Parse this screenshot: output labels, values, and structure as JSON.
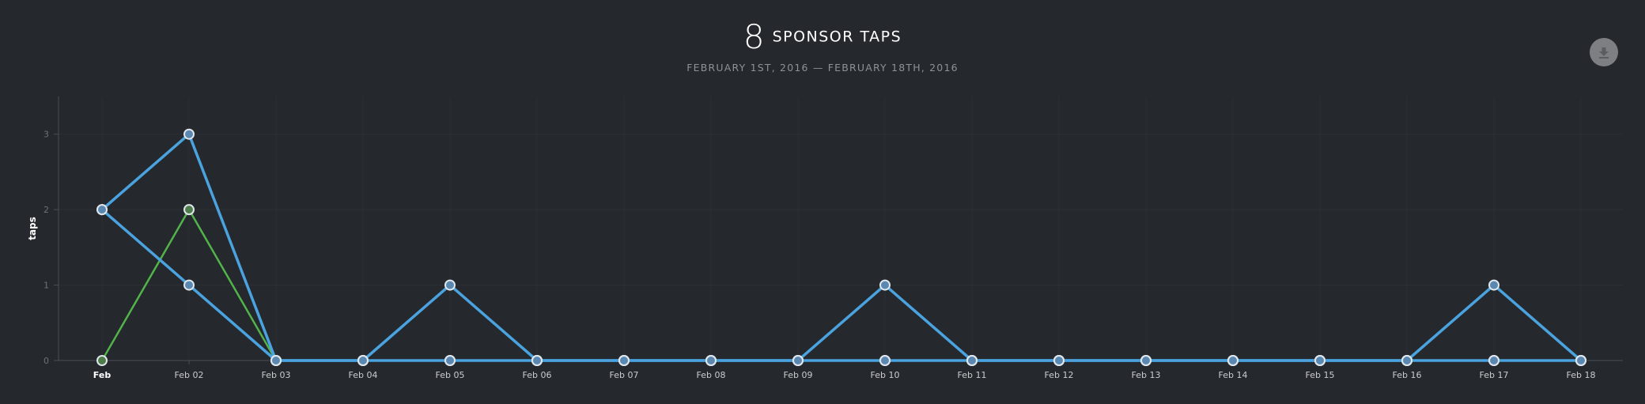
{
  "header": {
    "count": "8",
    "label": "SPONSOR TAPS",
    "date_range": "FEBRUARY 1ST, 2016 — FEBRUARY 18TH, 2016"
  },
  "toolbar": {
    "download_icon": "download-icon"
  },
  "colors": {
    "background": "#25282c",
    "series_blue": "#4aa3df",
    "series_green": "#52b34a",
    "grid": "#2c3034",
    "axis": "#4a4e53"
  },
  "chart_data": {
    "type": "line",
    "ylabel": "taps",
    "xlabel": "",
    "ylim": [
      0,
      3.5
    ],
    "yticks": [
      0,
      1,
      2,
      3
    ],
    "categories": [
      "Feb",
      "Feb 02",
      "Feb 03",
      "Feb 04",
      "Feb 05",
      "Feb 06",
      "Feb 07",
      "Feb 08",
      "Feb 09",
      "Feb 10",
      "Feb 11",
      "Feb 12",
      "Feb 13",
      "Feb 14",
      "Feb 15",
      "Feb 16",
      "Feb 17",
      "Feb 18"
    ],
    "series": [
      {
        "color": "#4aa3df",
        "values": [
          2,
          3,
          0,
          0,
          1,
          0,
          0,
          0,
          0,
          1,
          0,
          0,
          0,
          0,
          0,
          0,
          1,
          0
        ]
      },
      {
        "color": "#4aa3df",
        "values": [
          2,
          1,
          0,
          0,
          0,
          0,
          0,
          0,
          0,
          0,
          0,
          0,
          0,
          0,
          0,
          0,
          0,
          0
        ]
      },
      {
        "color": "#52b34a",
        "values": [
          0,
          2,
          0,
          0,
          0,
          0,
          0,
          0,
          0,
          0,
          0,
          0,
          0,
          0,
          0,
          0,
          0,
          0
        ]
      }
    ],
    "grid": true,
    "legend": "none"
  }
}
